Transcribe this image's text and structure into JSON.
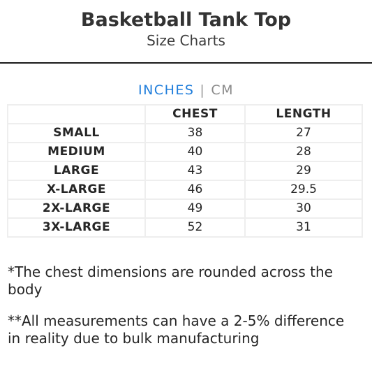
{
  "header": {
    "title": "Basketball Tank Top",
    "subtitle": "Size Charts"
  },
  "units": {
    "active": "INCHES",
    "separator": "|",
    "inactive": "CM",
    "active_color": "#1f7ddb"
  },
  "table": {
    "columns": [
      "",
      "CHEST",
      "LENGTH"
    ],
    "rows": [
      {
        "size": "SMALL",
        "chest": "38",
        "length": "27"
      },
      {
        "size": "MEDIUM",
        "chest": "40",
        "length": "28"
      },
      {
        "size": "LARGE",
        "chest": "43",
        "length": "29"
      },
      {
        "size": "X-LARGE",
        "chest": "46",
        "length": "29.5"
      },
      {
        "size": "2X-LARGE",
        "chest": "49",
        "length": "30"
      },
      {
        "size": "3X-LARGE",
        "chest": "52",
        "length": "31"
      }
    ]
  },
  "notes": [
    "*The chest dimensions are rounded across the body",
    "**All measurements can have a 2-5% difference in reality due to bulk manufacturing"
  ]
}
